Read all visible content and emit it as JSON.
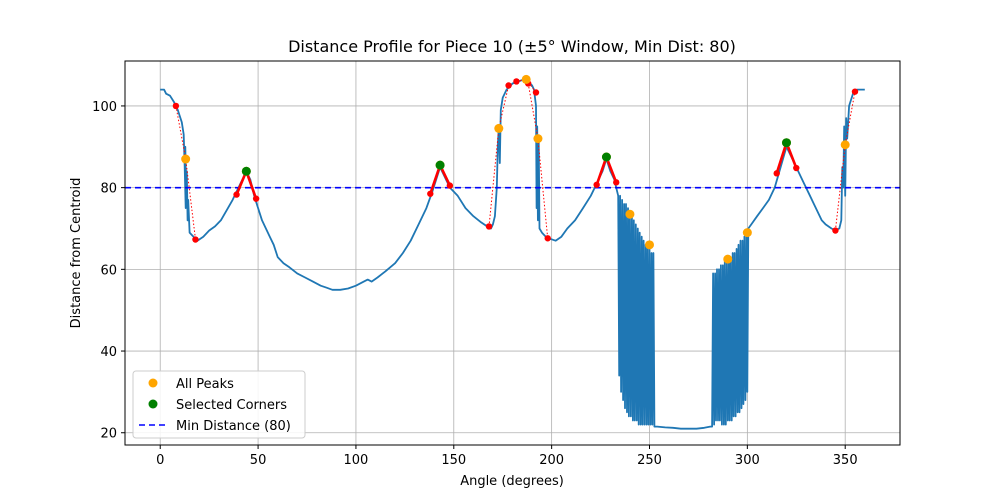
{
  "chart_data": {
    "type": "line",
    "title": "Distance Profile for Piece 10 (±5° Window, Min Dist: 80)",
    "xlabel": "Angle (degrees)",
    "ylabel": "Distance from Centroid",
    "xlim": [
      -18,
      378
    ],
    "ylim": [
      17,
      111
    ],
    "x_ticks": [
      0,
      50,
      100,
      150,
      200,
      250,
      300,
      350
    ],
    "y_ticks": [
      20,
      40,
      60,
      80,
      100
    ],
    "grid": true,
    "legend_position": "lower-left",
    "colors": {
      "profile": "#1f77b4",
      "all_peaks": "#ffa500",
      "selected": "#008000",
      "window_points": "#ff0000",
      "min_line": "#0000ff"
    },
    "legend": [
      {
        "label": "All Peaks",
        "kind": "marker",
        "color": "#ffa500"
      },
      {
        "label": "Selected Corners",
        "kind": "marker",
        "color": "#008000"
      },
      {
        "label": "Min Distance (80)",
        "kind": "dashed",
        "color": "#0000ff"
      }
    ],
    "profile_series": {
      "name": "Distance Profile",
      "points": [
        [
          0,
          104
        ],
        [
          2,
          104
        ],
        [
          3,
          103
        ],
        [
          5,
          102.5
        ],
        [
          7,
          101
        ],
        [
          9,
          99
        ],
        [
          11,
          96
        ],
        [
          12,
          93
        ],
        [
          12.5,
          85
        ],
        [
          13,
          75
        ],
        [
          12.8,
          90
        ],
        [
          13.2,
          80
        ],
        [
          13.6,
          84
        ],
        [
          14,
          72
        ],
        [
          14.3,
          77
        ],
        [
          15,
          69
        ],
        [
          17,
          68
        ],
        [
          19,
          67
        ],
        [
          22,
          68
        ],
        [
          25,
          69.5
        ],
        [
          28,
          70.5
        ],
        [
          31,
          72
        ],
        [
          34,
          74.5
        ],
        [
          37,
          77
        ],
        [
          40,
          80
        ],
        [
          42,
          82
        ],
        [
          44,
          84
        ],
        [
          46,
          82
        ],
        [
          48,
          78
        ],
        [
          50,
          75
        ],
        [
          52,
          72
        ],
        [
          54,
          70
        ],
        [
          56,
          68
        ],
        [
          58,
          66
        ],
        [
          60,
          63
        ],
        [
          63,
          61.5
        ],
        [
          66,
          60.5
        ],
        [
          70,
          59
        ],
        [
          74,
          58
        ],
        [
          78,
          57
        ],
        [
          82,
          56
        ],
        [
          85,
          55.5
        ],
        [
          88,
          55
        ],
        [
          92,
          55
        ],
        [
          96,
          55.3
        ],
        [
          100,
          56
        ],
        [
          104,
          57
        ],
        [
          106,
          57.5
        ],
        [
          108,
          57
        ],
        [
          111,
          58
        ],
        [
          115,
          59.5
        ],
        [
          120,
          61.5
        ],
        [
          124,
          64
        ],
        [
          128,
          67
        ],
        [
          132,
          71
        ],
        [
          136,
          75
        ],
        [
          139,
          79
        ],
        [
          141,
          82
        ],
        [
          143,
          85
        ],
        [
          145,
          83
        ],
        [
          148,
          80
        ],
        [
          152,
          78
        ],
        [
          156,
          75
        ],
        [
          160,
          73
        ],
        [
          164,
          71.5
        ],
        [
          167,
          70.5
        ],
        [
          169,
          70
        ],
        [
          170,
          71
        ],
        [
          171,
          73
        ],
        [
          172,
          80
        ],
        [
          172.5,
          90
        ],
        [
          173,
          95
        ],
        [
          173.5,
          86
        ],
        [
          174,
          99
        ],
        [
          175,
          102
        ],
        [
          177,
          104
        ],
        [
          180,
          105.5
        ],
        [
          183,
          106
        ],
        [
          186,
          106.5
        ],
        [
          188,
          106
        ],
        [
          190,
          105
        ],
        [
          191,
          104
        ],
        [
          192,
          100
        ],
        [
          192.3,
          75
        ],
        [
          192.6,
          95
        ],
        [
          193,
          72
        ],
        [
          193.4,
          92
        ],
        [
          193.8,
          70
        ],
        [
          195,
          69
        ],
        [
          197,
          68
        ],
        [
          199,
          67.5
        ],
        [
          202,
          67
        ],
        [
          205,
          68
        ],
        [
          208,
          70
        ],
        [
          212,
          72
        ],
        [
          216,
          75
        ],
        [
          220,
          78
        ],
        [
          223,
          81
        ],
        [
          226,
          84
        ],
        [
          228,
          87
        ],
        [
          230,
          84
        ],
        [
          232,
          82
        ],
        [
          233,
          80
        ],
        [
          234,
          78
        ],
        [
          234.5,
          34
        ],
        [
          235,
          78
        ],
        [
          235.5,
          30
        ],
        [
          236,
          77
        ],
        [
          236.5,
          28
        ],
        [
          237,
          76
        ],
        [
          237.5,
          26
        ],
        [
          238,
          76
        ],
        [
          238.5,
          25
        ],
        [
          239,
          75
        ],
        [
          239.5,
          24
        ],
        [
          240,
          74
        ],
        [
          240.5,
          24
        ],
        [
          241,
          73
        ],
        [
          241.5,
          23
        ],
        [
          242,
          72
        ],
        [
          242.5,
          23
        ],
        [
          243,
          71
        ],
        [
          243.5,
          23
        ],
        [
          244,
          70
        ],
        [
          244.5,
          22
        ],
        [
          245,
          69
        ],
        [
          245.5,
          22
        ],
        [
          246,
          68
        ],
        [
          246.5,
          22
        ],
        [
          247,
          67
        ],
        [
          247.5,
          22
        ],
        [
          248,
          66
        ],
        [
          248.5,
          22
        ],
        [
          249,
          66
        ],
        [
          249.5,
          22
        ],
        [
          250,
          65
        ],
        [
          250.5,
          22
        ],
        [
          251,
          64
        ],
        [
          251.5,
          22
        ],
        [
          252,
          64
        ],
        [
          252.5,
          21.5
        ],
        [
          254,
          21.5
        ],
        [
          258,
          21.3
        ],
        [
          262,
          21.2
        ],
        [
          266,
          21
        ],
        [
          270,
          21
        ],
        [
          274,
          21
        ],
        [
          278,
          21.2
        ],
        [
          281,
          21.5
        ],
        [
          282,
          21.5
        ],
        [
          282.5,
          59
        ],
        [
          283,
          22
        ],
        [
          283.5,
          59
        ],
        [
          284,
          23
        ],
        [
          284.5,
          60
        ],
        [
          285,
          23
        ],
        [
          285.5,
          60
        ],
        [
          286,
          23
        ],
        [
          286.5,
          61
        ],
        [
          287,
          22
        ],
        [
          287.5,
          61
        ],
        [
          288,
          22
        ],
        [
          288.5,
          62
        ],
        [
          289,
          22
        ],
        [
          289.5,
          62
        ],
        [
          290,
          23
        ],
        [
          290.5,
          63
        ],
        [
          291,
          23
        ],
        [
          291.5,
          63
        ],
        [
          292,
          23
        ],
        [
          292.5,
          64
        ],
        [
          293,
          24
        ],
        [
          293.5,
          64
        ],
        [
          294,
          24
        ],
        [
          294.5,
          65
        ],
        [
          295,
          25
        ],
        [
          295.5,
          66
        ],
        [
          296,
          25
        ],
        [
          296.5,
          67
        ],
        [
          297,
          26
        ],
        [
          297.5,
          67
        ],
        [
          298,
          27
        ],
        [
          298.5,
          68
        ],
        [
          299,
          28
        ],
        [
          299.5,
          69
        ],
        [
          300,
          30
        ],
        [
          300.5,
          70
        ],
        [
          302,
          71
        ],
        [
          305,
          73
        ],
        [
          308,
          75
        ],
        [
          311,
          77
        ],
        [
          314,
          80
        ],
        [
          317,
          85
        ],
        [
          320,
          90
        ],
        [
          323,
          87
        ],
        [
          326,
          84
        ],
        [
          329,
          81
        ],
        [
          332,
          78
        ],
        [
          334,
          76
        ],
        [
          336,
          74
        ],
        [
          338,
          72
        ],
        [
          340,
          71
        ],
        [
          343,
          70
        ],
        [
          345,
          69.5
        ],
        [
          347,
          70
        ],
        [
          348,
          72
        ],
        [
          348.5,
          85
        ],
        [
          349,
          80
        ],
        [
          349.5,
          95
        ],
        [
          350,
          78
        ],
        [
          350.5,
          97
        ],
        [
          351,
          92
        ],
        [
          352,
          100
        ],
        [
          354,
          103
        ],
        [
          356,
          104
        ],
        [
          358,
          104
        ],
        [
          360,
          104
        ]
      ]
    },
    "all_peaks": [
      {
        "x": 13,
        "y": 87
      },
      {
        "x": 44,
        "y": 84
      },
      {
        "x": 143,
        "y": 85.5
      },
      {
        "x": 173,
        "y": 94.5
      },
      {
        "x": 187,
        "y": 106.5
      },
      {
        "x": 193,
        "y": 92
      },
      {
        "x": 228,
        "y": 87.5
      },
      {
        "x": 240,
        "y": 73.5
      },
      {
        "x": 250,
        "y": 66
      },
      {
        "x": 290,
        "y": 62.5
      },
      {
        "x": 300,
        "y": 69
      },
      {
        "x": 320,
        "y": 91
      },
      {
        "x": 350,
        "y": 90.5
      }
    ],
    "selected_corners": [
      {
        "x": 44,
        "y": 84
      },
      {
        "x": 143,
        "y": 85.5
      },
      {
        "x": 228,
        "y": 87.5
      },
      {
        "x": 320,
        "y": 91
      }
    ],
    "window_segments": [
      {
        "selected": false,
        "points": [
          [
            8,
            100
          ],
          [
            13,
            87
          ],
          [
            18,
            67.3
          ]
        ]
      },
      {
        "selected": true,
        "points": [
          [
            39,
            78.3
          ],
          [
            44,
            84
          ],
          [
            49,
            77.3
          ]
        ]
      },
      {
        "selected": true,
        "points": [
          [
            138,
            78.5
          ],
          [
            143,
            85.5
          ],
          [
            148,
            80.5
          ]
        ]
      },
      {
        "selected": false,
        "points": [
          [
            168,
            70.5
          ],
          [
            173,
            94.5
          ],
          [
            178,
            105
          ]
        ]
      },
      {
        "selected": false,
        "points": [
          [
            182,
            106
          ],
          [
            187,
            106.5
          ],
          [
            192,
            103.3
          ]
        ]
      },
      {
        "selected": false,
        "points": [
          [
            188,
            105.5
          ],
          [
            193,
            92
          ],
          [
            198,
            67.6
          ]
        ]
      },
      {
        "selected": true,
        "points": [
          [
            223,
            80.7
          ],
          [
            228,
            87.5
          ],
          [
            233,
            81.3
          ]
        ]
      },
      {
        "selected": true,
        "points": [
          [
            315,
            83.5
          ],
          [
            320,
            91
          ],
          [
            325,
            84.8
          ]
        ]
      },
      {
        "selected": false,
        "points": [
          [
            345,
            69.5
          ],
          [
            350,
            90.5
          ],
          [
            355,
            103.5
          ]
        ]
      }
    ],
    "min_distance": 80
  }
}
